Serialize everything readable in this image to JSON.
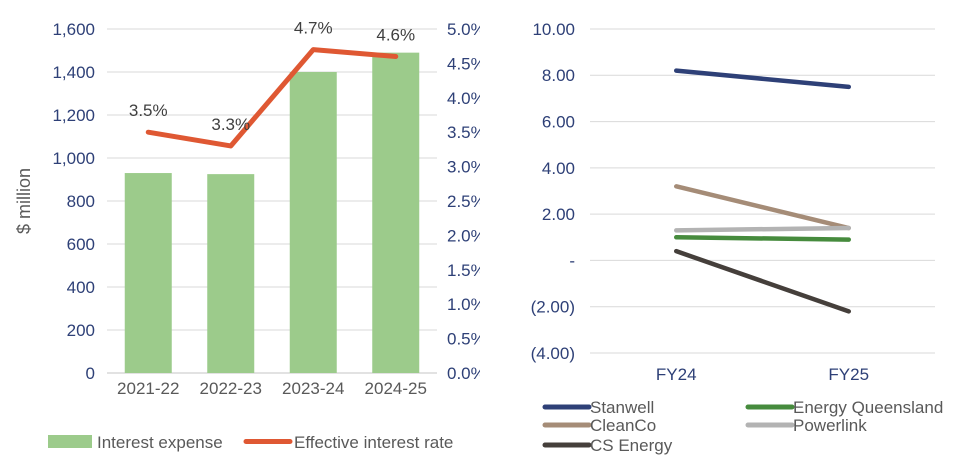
{
  "colors": {
    "axis_text": "#2E4077",
    "label_text": "#595959",
    "data_label_text": "#3F3F3F",
    "gridline": "#D9D9D9",
    "baseline": "#C6C6C6"
  },
  "chart_data": [
    {
      "id": "interest-expense",
      "type": "bar",
      "categories": [
        "2021-22",
        "2022-23",
        "2023-24",
        "2024-25"
      ],
      "y_left": {
        "title": "$ million",
        "min": 0,
        "max": 1600,
        "step": 200,
        "tick_values": [
          0,
          200,
          400,
          600,
          800,
          1000,
          1200,
          1400,
          1600
        ],
        "tick_labels": [
          "0",
          "200",
          "400",
          "600",
          "800",
          "1,000",
          "1,200",
          "1,400",
          "1,600"
        ]
      },
      "y_right": {
        "min": 0,
        "max": 5,
        "step": 0.5,
        "tick_values": [
          0,
          0.5,
          1,
          1.5,
          2,
          2.5,
          3,
          3.5,
          4,
          4.5,
          5
        ],
        "tick_labels": [
          "0.0%",
          "0.5%",
          "1.0%",
          "1.5%",
          "2.0%",
          "2.5%",
          "3.0%",
          "3.5%",
          "4.0%",
          "4.5%",
          "5.0%"
        ]
      },
      "series": [
        {
          "name": "Interest expense",
          "type": "bar",
          "axis": "left",
          "color": "#9CCB8B",
          "values": [
            930,
            925,
            1400,
            1490
          ]
        },
        {
          "name": "Effective interest rate",
          "type": "line",
          "axis": "right",
          "color": "#DF5833",
          "values": [
            3.5,
            3.3,
            4.7,
            4.6
          ],
          "point_labels": [
            "3.5%",
            "3.3%",
            "4.7%",
            "4.6%"
          ]
        }
      ],
      "legend_position": "bottom"
    },
    {
      "id": "entities-lines",
      "type": "line",
      "categories": [
        "FY24",
        "FY25"
      ],
      "y": {
        "min": -4,
        "max": 10,
        "step": 2,
        "tick_values": [
          10,
          8,
          6,
          4,
          2,
          0,
          -2,
          -4
        ],
        "tick_labels": [
          "10.00",
          "8.00",
          "6.00",
          "4.00",
          "2.00",
          "-",
          "(2.00)",
          "(4.00)"
        ]
      },
      "series": [
        {
          "name": "Stanwell",
          "color": "#2E4077",
          "values": [
            8.2,
            7.5
          ]
        },
        {
          "name": "CleanCo",
          "color": "#A58C77",
          "values": [
            3.2,
            1.4
          ]
        },
        {
          "name": "CS Energy",
          "color": "#453F3B",
          "values": [
            0.4,
            -2.2
          ]
        },
        {
          "name": "Energy Queensland",
          "color": "#468B3D",
          "values": [
            1.0,
            0.9
          ]
        },
        {
          "name": "Powerlink",
          "color": "#B3B3B3",
          "values": [
            1.3,
            1.4
          ]
        }
      ],
      "legend_columns": [
        [
          "Stanwell",
          "CleanCo",
          "CS Energy"
        ],
        [
          "Energy Queensland",
          "Powerlink"
        ]
      ],
      "legend_position": "bottom"
    }
  ]
}
